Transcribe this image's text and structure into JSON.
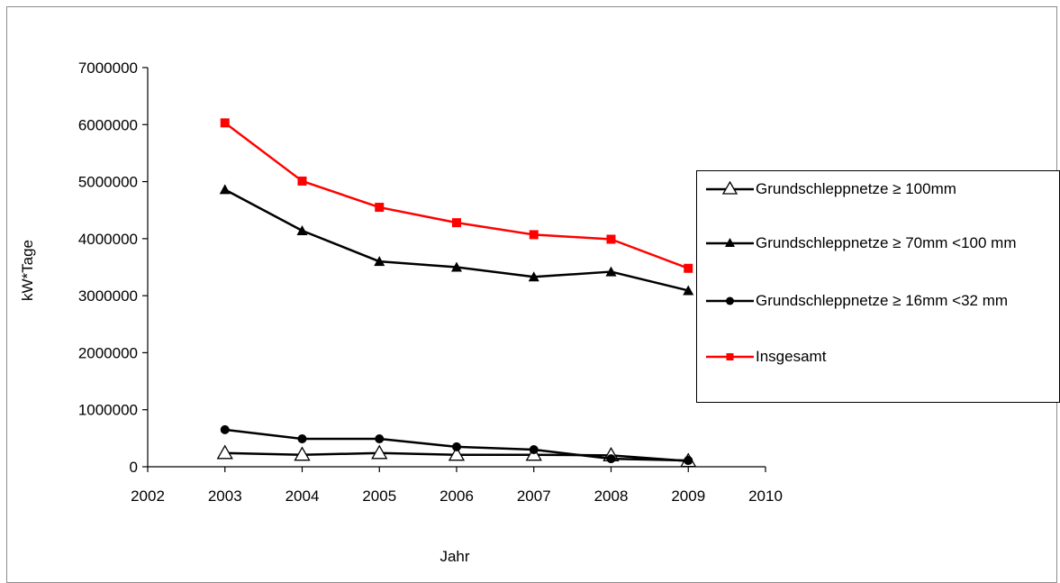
{
  "chart_data": {
    "type": "line",
    "title": "",
    "xlabel": "Jahr",
    "ylabel": "kW*Tage",
    "xlim": [
      2002,
      2010
    ],
    "ylim": [
      0,
      7000000
    ],
    "x_ticks": [
      "2002",
      "2003",
      "2004",
      "2005",
      "2006",
      "2007",
      "2008",
      "2009",
      "2010"
    ],
    "y_ticks": [
      "0",
      "1000000",
      "2000000",
      "3000000",
      "4000000",
      "5000000",
      "6000000",
      "7000000"
    ],
    "x": [
      2003,
      2004,
      2005,
      2006,
      2007,
      2008,
      2009
    ],
    "grid": false,
    "legend_position": "right",
    "series": [
      {
        "name": "Grundschleppnetze ≥ 100mm",
        "marker": "open-triangle",
        "color": "#000000",
        "values": [
          240000,
          210000,
          240000,
          210000,
          210000,
          200000,
          100000
        ]
      },
      {
        "name": "Grundschleppnetze ≥ 70mm <100 mm",
        "marker": "filled-triangle",
        "color": "#000000",
        "values": [
          4860000,
          4140000,
          3600000,
          3500000,
          3330000,
          3420000,
          3090000
        ]
      },
      {
        "name": "Grundschleppnetze ≥ 16mm <32 mm",
        "marker": "circle",
        "color": "#000000",
        "values": [
          650000,
          490000,
          490000,
          350000,
          300000,
          140000,
          110000
        ]
      },
      {
        "name": "Insgesamt",
        "marker": "square",
        "color": "#ff0000",
        "values": [
          6030000,
          5010000,
          4550000,
          4280000,
          4070000,
          3990000,
          3480000
        ]
      }
    ]
  }
}
